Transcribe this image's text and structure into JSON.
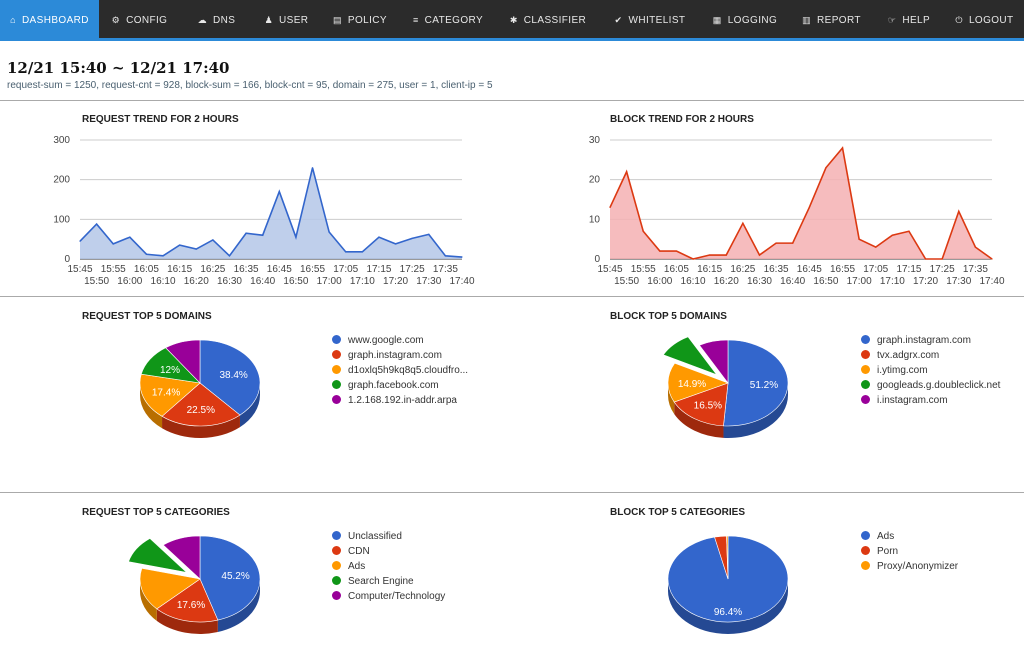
{
  "nav": {
    "items": [
      {
        "label": "DASHBOARD",
        "icon": "home-icon",
        "glyph": "⌂"
      },
      {
        "label": "CONFIG",
        "icon": "gear-icon",
        "glyph": "⚙"
      },
      {
        "label": "DNS",
        "icon": "cloud-icon",
        "glyph": "☁"
      },
      {
        "label": "USER",
        "icon": "user-icon",
        "glyph": "♟"
      },
      {
        "label": "POLICY",
        "icon": "book-icon",
        "glyph": "▤"
      },
      {
        "label": "CATEGORY",
        "icon": "list-icon",
        "glyph": "≡"
      },
      {
        "label": "CLASSIFIER",
        "icon": "bug-icon",
        "glyph": "✱"
      },
      {
        "label": "WHITELIST",
        "icon": "check-circle-icon",
        "glyph": "✔"
      },
      {
        "label": "LOGGING",
        "icon": "database-icon",
        "glyph": "▦"
      },
      {
        "label": "REPORT",
        "icon": "bar-chart-icon",
        "glyph": "▥"
      },
      {
        "label": "HELP",
        "icon": "hand-icon",
        "glyph": "☞"
      },
      {
        "label": "LOGOUT",
        "icon": "power-icon",
        "glyph": "⏻"
      }
    ]
  },
  "header": {
    "title": "12/21 15:40 ~ 12/21 17:40",
    "stats": "request-sum = 1250, request-cnt = 928, block-sum = 166, block-cnt = 95, domain = 275, user = 1, client-ip = 5"
  },
  "colors": {
    "blue": "#3366cc",
    "red": "#dc3912",
    "orange": "#ff9900",
    "green": "#109618",
    "purple": "#990099",
    "nav_active": "#2c8ad8"
  },
  "chart_data": [
    {
      "id": "request-trend",
      "type": "area",
      "title": "REQUEST TREND FOR 2 HOURS",
      "x": [
        "15:45",
        "15:50",
        "15:55",
        "16:00",
        "16:05",
        "16:10",
        "16:15",
        "16:20",
        "16:25",
        "16:30",
        "16:35",
        "16:40",
        "16:45",
        "16:50",
        "16:55",
        "17:00",
        "17:05",
        "17:10",
        "17:15",
        "17:20",
        "17:25",
        "17:30",
        "17:35",
        "17:40"
      ],
      "values": [
        45,
        88,
        38,
        55,
        12,
        8,
        35,
        25,
        48,
        8,
        65,
        60,
        170,
        55,
        230,
        68,
        18,
        18,
        55,
        38,
        52,
        62,
        8,
        5
      ],
      "ylim": [
        0,
        300
      ],
      "yticks": [
        0,
        100,
        200,
        300
      ],
      "color": "#3366cc",
      "fill": "#b4c7e7"
    },
    {
      "id": "block-trend",
      "type": "area",
      "title": "BLOCK TREND FOR 2 HOURS",
      "x": [
        "15:45",
        "15:50",
        "15:55",
        "16:00",
        "16:05",
        "16:10",
        "16:15",
        "16:20",
        "16:25",
        "16:30",
        "16:35",
        "16:40",
        "16:45",
        "16:50",
        "16:55",
        "17:00",
        "17:05",
        "17:10",
        "17:15",
        "17:20",
        "17:25",
        "17:30",
        "17:35",
        "17:40"
      ],
      "values": [
        13,
        22,
        7,
        2,
        2,
        0,
        1,
        1,
        9,
        1,
        4,
        4,
        13,
        23,
        28,
        5,
        3,
        6,
        7,
        0,
        0,
        12,
        3,
        0
      ],
      "ylim": [
        0,
        30
      ],
      "yticks": [
        0,
        10,
        20,
        30
      ],
      "color": "#dc3912",
      "fill": "#f4b0b3"
    },
    {
      "id": "request-domains",
      "type": "pie",
      "title": "REQUEST TOP 5 DOMAINS",
      "labels": [
        "www.google.com",
        "graph.instagram.com",
        "d1oxlq5h9kq8q5.cloudfro...",
        "graph.facebook.com",
        "1.2.168.192.in-addr.arpa"
      ],
      "values": [
        38.4,
        22.5,
        17.4,
        12,
        9.7
      ],
      "pct_labels": [
        "38.4%",
        "22.5%",
        "17.4%",
        "12%",
        ""
      ],
      "explode": -1
    },
    {
      "id": "block-domains",
      "type": "pie",
      "title": "BLOCK TOP 5 DOMAINS",
      "labels": [
        "graph.instagram.com",
        "tvx.adgrx.com",
        "i.ytimg.com",
        "googleads.g.doubleclick.net",
        "i.instagram.com"
      ],
      "values": [
        51.2,
        16.5,
        14.9,
        9.5,
        7.9
      ],
      "pct_labels": [
        "51.2%",
        "16.5%",
        "14.9%",
        "",
        ""
      ],
      "explode": 3
    },
    {
      "id": "request-categories",
      "type": "pie",
      "title": "REQUEST TOP 5 CATEGORIES",
      "labels": [
        "Unclassified",
        "CDN",
        "Ads",
        "Search Engine",
        "Computer/Technology"
      ],
      "values": [
        45.2,
        17.6,
        16.2,
        10.5,
        10.5
      ],
      "pct_labels": [
        "45.2%",
        "17.6%",
        "",
        "",
        ""
      ],
      "explode": 3
    },
    {
      "id": "block-categories",
      "type": "pie",
      "title": "BLOCK TOP 5 CATEGORIES",
      "labels": [
        "Ads",
        "Porn",
        "Proxy/Anonymizer"
      ],
      "values": [
        96.4,
        3.2,
        0.4
      ],
      "pct_labels": [
        "96.4%",
        "",
        ""
      ],
      "explode": -1
    }
  ]
}
